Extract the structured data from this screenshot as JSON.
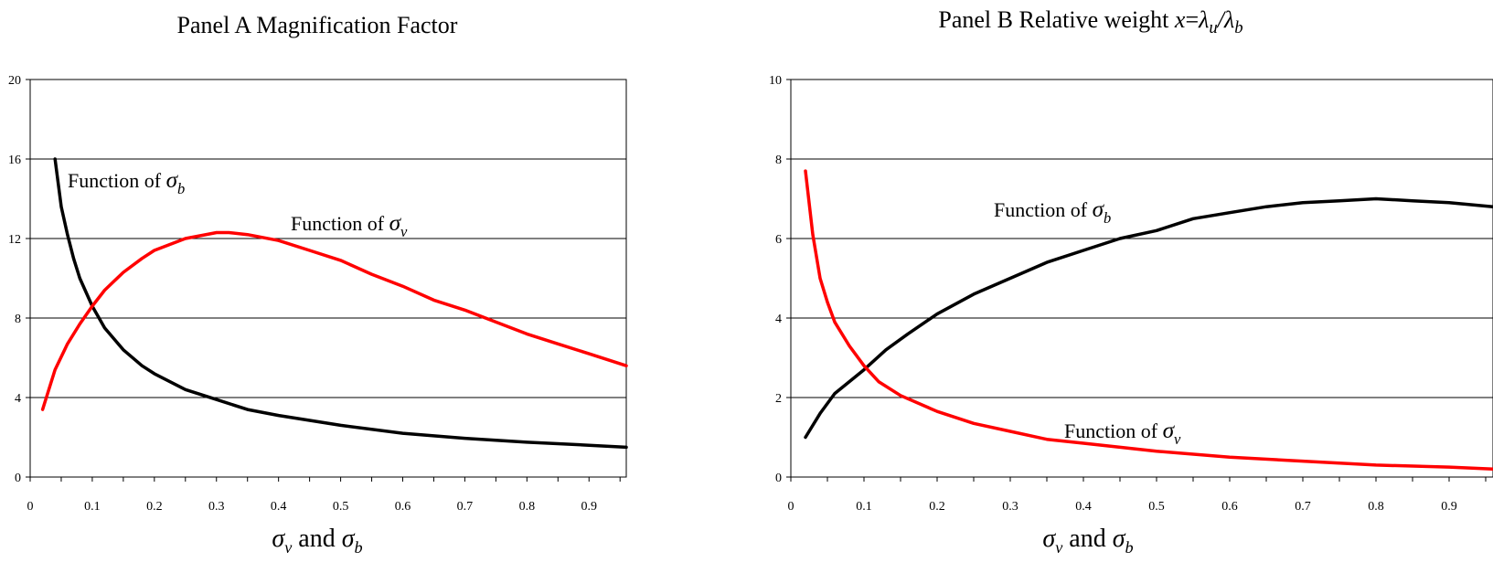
{
  "chart_data": [
    {
      "type": "line",
      "title_parts": [
        "Panel A  Magnification Factor"
      ],
      "xlabel_parts": [
        [
          "σ",
          "v"
        ],
        " and ",
        [
          "σ",
          "b"
        ]
      ],
      "xlim": [
        0,
        0.96
      ],
      "ylim": [
        0,
        20
      ],
      "x_ticks": [
        "0",
        "0.1",
        "0.2",
        "0.3",
        "0.4",
        "0.5",
        "0.6",
        "0.7",
        "0.8",
        "0.9"
      ],
      "y_ticks": [
        "0",
        "4",
        "8",
        "12",
        "16",
        "20"
      ],
      "grid": "horizontal",
      "series": [
        {
          "color": "#000000",
          "annotation": [
            "Function of ",
            "σ",
            "b"
          ],
          "x": [
            0.04,
            0.05,
            0.06,
            0.07,
            0.08,
            0.1,
            0.12,
            0.15,
            0.18,
            0.2,
            0.25,
            0.3,
            0.35,
            0.4,
            0.5,
            0.6,
            0.7,
            0.8,
            0.9,
            0.96
          ],
          "y": [
            16.0,
            13.6,
            12.2,
            11.0,
            10.0,
            8.6,
            7.5,
            6.4,
            5.6,
            5.2,
            4.4,
            3.9,
            3.4,
            3.1,
            2.6,
            2.2,
            1.95,
            1.75,
            1.6,
            1.5
          ]
        },
        {
          "color": "#ff0000",
          "annotation": [
            "Function of ",
            "σ",
            "v"
          ],
          "x": [
            0.02,
            0.04,
            0.06,
            0.08,
            0.1,
            0.12,
            0.15,
            0.18,
            0.2,
            0.25,
            0.3,
            0.32,
            0.35,
            0.4,
            0.45,
            0.5,
            0.55,
            0.6,
            0.65,
            0.7,
            0.75,
            0.8,
            0.85,
            0.9,
            0.96
          ],
          "y": [
            3.4,
            5.4,
            6.7,
            7.7,
            8.6,
            9.4,
            10.3,
            11.0,
            11.4,
            12.0,
            12.3,
            12.3,
            12.2,
            11.9,
            11.4,
            10.9,
            10.2,
            9.6,
            8.9,
            8.4,
            7.8,
            7.2,
            6.7,
            6.2,
            5.6
          ]
        }
      ]
    },
    {
      "type": "line",
      "title_parts": [
        "Panel B  Relative weight ",
        "x",
        "=",
        "λ",
        "u",
        "/",
        "λ",
        "b"
      ],
      "xlabel_parts": [
        [
          "σ",
          "v"
        ],
        " and ",
        [
          "σ",
          "b"
        ]
      ],
      "xlim": [
        0,
        0.96
      ],
      "ylim": [
        0,
        10
      ],
      "x_ticks": [
        "0",
        "0.1",
        "0.2",
        "0.3",
        "0.4",
        "0.5",
        "0.6",
        "0.7",
        "0.8",
        "0.9"
      ],
      "y_ticks": [
        "0",
        "2",
        "4",
        "6",
        "8",
        "10"
      ],
      "grid": "horizontal",
      "series": [
        {
          "color": "#000000",
          "annotation": [
            "Function of ",
            "σ",
            "b"
          ],
          "x": [
            0.02,
            0.04,
            0.06,
            0.08,
            0.1,
            0.13,
            0.16,
            0.2,
            0.25,
            0.3,
            0.35,
            0.4,
            0.45,
            0.5,
            0.55,
            0.6,
            0.65,
            0.7,
            0.75,
            0.8,
            0.85,
            0.9,
            0.96
          ],
          "y": [
            1.0,
            1.6,
            2.1,
            2.4,
            2.7,
            3.2,
            3.6,
            4.1,
            4.6,
            5.0,
            5.4,
            5.7,
            6.0,
            6.2,
            6.5,
            6.65,
            6.8,
            6.9,
            6.95,
            7.0,
            6.95,
            6.9,
            6.8
          ]
        },
        {
          "color": "#ff0000",
          "annotation": [
            "Function of ",
            "σ",
            "v"
          ],
          "x": [
            0.02,
            0.03,
            0.04,
            0.05,
            0.06,
            0.08,
            0.1,
            0.12,
            0.15,
            0.2,
            0.25,
            0.3,
            0.35,
            0.4,
            0.5,
            0.6,
            0.7,
            0.8,
            0.9,
            0.96
          ],
          "y": [
            7.7,
            6.1,
            5.0,
            4.4,
            3.9,
            3.3,
            2.8,
            2.4,
            2.05,
            1.65,
            1.35,
            1.15,
            0.95,
            0.85,
            0.65,
            0.5,
            0.4,
            0.3,
            0.25,
            0.2
          ]
        }
      ]
    }
  ]
}
